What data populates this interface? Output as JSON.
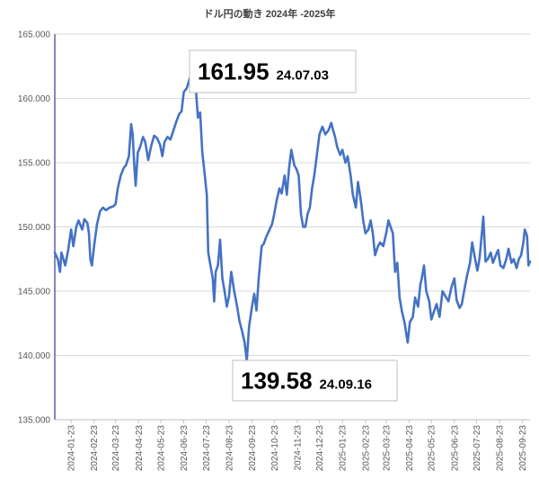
{
  "chart_data": {
    "type": "line",
    "title": "ドル円の動き 2024年 -2025年",
    "xlabel": "",
    "ylabel": "",
    "ylim": [
      135,
      165
    ],
    "yticks": [
      "135.000",
      "140.000",
      "145.000",
      "150.000",
      "155.000",
      "160.000",
      "165.000"
    ],
    "ytick_values": [
      135,
      140,
      145,
      150,
      155,
      160,
      165
    ],
    "xticks": [
      "2024-01-23",
      "2024-02-23",
      "2024-03-23",
      "2024-04-23",
      "2024-05-23",
      "2024-06-23",
      "2024-07-23",
      "2024-08-23",
      "2024-09-23",
      "2024-10-23",
      "2024-11-23",
      "2024-12-23",
      "2025-01-23",
      "2025-02-23",
      "2025-03-23",
      "2025-04-23",
      "2025-05-23",
      "2025-06-23",
      "2025-07-23",
      "2025-08-23",
      "2025-09-23"
    ],
    "xlim": [
      "2024-01-01",
      "2025-10-03"
    ],
    "grid": true,
    "series": [
      {
        "color": "#4472c4",
        "points": [
          [
            "2024-01-01",
            148.0
          ],
          [
            "2024-01-05",
            147.5
          ],
          [
            "2024-01-08",
            146.5
          ],
          [
            "2024-01-10",
            148.0
          ],
          [
            "2024-01-15",
            147.0
          ],
          [
            "2024-01-19",
            148.2
          ],
          [
            "2024-01-23",
            149.8
          ],
          [
            "2024-01-26",
            148.5
          ],
          [
            "2024-01-30",
            150.0
          ],
          [
            "2024-02-02",
            150.5
          ],
          [
            "2024-02-07",
            149.8
          ],
          [
            "2024-02-10",
            150.6
          ],
          [
            "2024-02-14",
            150.3
          ],
          [
            "2024-02-16",
            149.5
          ],
          [
            "2024-02-18",
            147.5
          ],
          [
            "2024-02-20",
            147.0
          ],
          [
            "2024-02-23",
            148.5
          ],
          [
            "2024-02-27",
            150.2
          ],
          [
            "2024-03-02",
            151.2
          ],
          [
            "2024-03-06",
            151.5
          ],
          [
            "2024-03-10",
            151.3
          ],
          [
            "2024-03-15",
            151.5
          ],
          [
            "2024-03-20",
            151.6
          ],
          [
            "2024-03-23",
            151.8
          ],
          [
            "2024-03-26",
            153.0
          ],
          [
            "2024-03-30",
            154.0
          ],
          [
            "2024-04-03",
            154.6
          ],
          [
            "2024-04-06",
            154.8
          ],
          [
            "2024-04-10",
            155.5
          ],
          [
            "2024-04-13",
            158.0
          ],
          [
            "2024-04-15",
            157.2
          ],
          [
            "2024-04-17",
            155.0
          ],
          [
            "2024-04-19",
            153.2
          ],
          [
            "2024-04-22",
            155.8
          ],
          [
            "2024-04-25",
            156.2
          ],
          [
            "2024-04-29",
            157.0
          ],
          [
            "2024-05-02",
            156.6
          ],
          [
            "2024-05-06",
            155.2
          ],
          [
            "2024-05-10",
            156.3
          ],
          [
            "2024-05-14",
            157.1
          ],
          [
            "2024-05-18",
            156.9
          ],
          [
            "2024-05-22",
            156.4
          ],
          [
            "2024-05-25",
            155.5
          ],
          [
            "2024-05-28",
            156.6
          ],
          [
            "2024-06-01",
            157.0
          ],
          [
            "2024-06-05",
            156.8
          ],
          [
            "2024-06-09",
            157.5
          ],
          [
            "2024-06-13",
            158.2
          ],
          [
            "2024-06-17",
            158.8
          ],
          [
            "2024-06-20",
            159.0
          ],
          [
            "2024-06-23",
            160.5
          ],
          [
            "2024-06-27",
            160.8
          ],
          [
            "2024-07-03",
            161.95
          ],
          [
            "2024-07-06",
            161.3
          ],
          [
            "2024-07-09",
            161.0
          ],
          [
            "2024-07-12",
            158.5
          ],
          [
            "2024-07-15",
            158.9
          ],
          [
            "2024-07-18",
            155.8
          ],
          [
            "2024-07-21",
            154.2
          ],
          [
            "2024-07-24",
            152.5
          ],
          [
            "2024-07-26",
            148.0
          ],
          [
            "2024-07-29",
            147.0
          ],
          [
            "2024-08-01",
            146.0
          ],
          [
            "2024-08-03",
            144.2
          ],
          [
            "2024-08-05",
            146.5
          ],
          [
            "2024-08-08",
            147.0
          ],
          [
            "2024-08-11",
            149.0
          ],
          [
            "2024-08-14",
            146.0
          ],
          [
            "2024-08-17",
            145.0
          ],
          [
            "2024-08-20",
            143.8
          ],
          [
            "2024-08-23",
            144.6
          ],
          [
            "2024-08-26",
            146.5
          ],
          [
            "2024-08-30",
            145.0
          ],
          [
            "2024-09-03",
            143.8
          ],
          [
            "2024-09-06",
            142.7
          ],
          [
            "2024-09-10",
            141.8
          ],
          [
            "2024-09-13",
            141.0
          ],
          [
            "2024-09-16",
            139.58
          ],
          [
            "2024-09-19",
            142.2
          ],
          [
            "2024-09-23",
            143.8
          ],
          [
            "2024-09-26",
            144.8
          ],
          [
            "2024-09-29",
            143.5
          ],
          [
            "2024-10-02",
            146.0
          ],
          [
            "2024-10-06",
            148.5
          ],
          [
            "2024-10-09",
            148.7
          ],
          [
            "2024-10-12",
            149.2
          ],
          [
            "2024-10-16",
            149.7
          ],
          [
            "2024-10-20",
            150.2
          ],
          [
            "2024-10-23",
            151.0
          ],
          [
            "2024-10-26",
            152.0
          ],
          [
            "2024-10-30",
            153.0
          ],
          [
            "2024-11-02",
            152.6
          ],
          [
            "2024-11-06",
            154.0
          ],
          [
            "2024-11-09",
            152.5
          ],
          [
            "2024-11-12",
            154.6
          ],
          [
            "2024-11-15",
            156.0
          ],
          [
            "2024-11-19",
            154.8
          ],
          [
            "2024-11-22",
            154.5
          ],
          [
            "2024-11-25",
            154.0
          ],
          [
            "2024-11-28",
            151.0
          ],
          [
            "2024-12-01",
            150.0
          ],
          [
            "2024-12-04",
            150.0
          ],
          [
            "2024-12-07",
            151.0
          ],
          [
            "2024-12-10",
            151.5
          ],
          [
            "2024-12-13",
            153.0
          ],
          [
            "2024-12-16",
            154.0
          ],
          [
            "2024-12-20",
            155.8
          ],
          [
            "2024-12-23",
            157.2
          ],
          [
            "2024-12-27",
            157.8
          ],
          [
            "2024-12-31",
            157.2
          ],
          [
            "2025-01-04",
            157.5
          ],
          [
            "2025-01-08",
            158.1
          ],
          [
            "2025-01-10",
            157.6
          ],
          [
            "2025-01-13",
            157.0
          ],
          [
            "2025-01-16",
            156.2
          ],
          [
            "2025-01-20",
            155.6
          ],
          [
            "2025-01-23",
            156.0
          ],
          [
            "2025-01-27",
            155.0
          ],
          [
            "2025-01-30",
            155.5
          ],
          [
            "2025-02-03",
            154.0
          ],
          [
            "2025-02-06",
            152.5
          ],
          [
            "2025-02-10",
            151.5
          ],
          [
            "2025-02-13",
            153.5
          ],
          [
            "2025-02-17",
            152.0
          ],
          [
            "2025-02-20",
            150.5
          ],
          [
            "2025-02-23",
            149.5
          ],
          [
            "2025-02-27",
            149.8
          ],
          [
            "2025-03-02",
            150.5
          ],
          [
            "2025-03-05",
            149.5
          ],
          [
            "2025-03-08",
            147.8
          ],
          [
            "2025-03-12",
            148.5
          ],
          [
            "2025-03-15",
            148.8
          ],
          [
            "2025-03-19",
            148.5
          ],
          [
            "2025-03-23",
            149.5
          ],
          [
            "2025-03-26",
            150.5
          ],
          [
            "2025-03-29",
            150.0
          ],
          [
            "2025-04-01",
            149.5
          ],
          [
            "2025-04-04",
            146.5
          ],
          [
            "2025-04-07",
            147.2
          ],
          [
            "2025-04-10",
            144.5
          ],
          [
            "2025-04-13",
            143.5
          ],
          [
            "2025-04-17",
            142.5
          ],
          [
            "2025-04-21",
            141.0
          ],
          [
            "2025-04-24",
            142.6
          ],
          [
            "2025-04-28",
            143.0
          ],
          [
            "2025-05-01",
            144.5
          ],
          [
            "2025-05-05",
            143.8
          ],
          [
            "2025-05-08",
            145.5
          ],
          [
            "2025-05-10",
            146.0
          ],
          [
            "2025-05-13",
            147.0
          ],
          [
            "2025-05-16",
            145.0
          ],
          [
            "2025-05-20",
            144.2
          ],
          [
            "2025-05-23",
            142.8
          ],
          [
            "2025-05-27",
            143.5
          ],
          [
            "2025-05-30",
            144.0
          ],
          [
            "2025-06-03",
            143.0
          ],
          [
            "2025-06-07",
            145.0
          ],
          [
            "2025-06-11",
            144.6
          ],
          [
            "2025-06-15",
            144.2
          ],
          [
            "2025-06-19",
            145.3
          ],
          [
            "2025-06-23",
            146.0
          ],
          [
            "2025-06-26",
            144.3
          ],
          [
            "2025-06-30",
            143.7
          ],
          [
            "2025-07-03",
            144.0
          ],
          [
            "2025-07-07",
            145.3
          ],
          [
            "2025-07-10",
            146.2
          ],
          [
            "2025-07-14",
            147.2
          ],
          [
            "2025-07-17",
            148.8
          ],
          [
            "2025-07-21",
            147.5
          ],
          [
            "2025-07-24",
            146.6
          ],
          [
            "2025-07-27",
            147.6
          ],
          [
            "2025-07-30",
            149.5
          ],
          [
            "2025-08-01",
            150.8
          ],
          [
            "2025-08-04",
            147.3
          ],
          [
            "2025-08-07",
            147.5
          ],
          [
            "2025-08-11",
            148.0
          ],
          [
            "2025-08-14",
            147.2
          ],
          [
            "2025-08-18",
            147.8
          ],
          [
            "2025-08-21",
            148.2
          ],
          [
            "2025-08-24",
            147.0
          ],
          [
            "2025-08-28",
            146.8
          ],
          [
            "2025-09-01",
            147.5
          ],
          [
            "2025-09-04",
            148.3
          ],
          [
            "2025-09-08",
            147.2
          ],
          [
            "2025-09-11",
            147.5
          ],
          [
            "2025-09-15",
            146.8
          ],
          [
            "2025-09-18",
            147.5
          ],
          [
            "2025-09-21",
            147.8
          ],
          [
            "2025-09-24",
            148.8
          ],
          [
            "2025-09-26",
            149.8
          ],
          [
            "2025-09-29",
            149.3
          ],
          [
            "2025-10-01",
            147.0
          ],
          [
            "2025-10-03",
            147.3
          ]
        ]
      }
    ],
    "annotations": [
      {
        "value": "161.95",
        "date": "24.07.03",
        "anchor_x": "2024-07-03",
        "anchor_y": 161.95
      },
      {
        "value": "139.58",
        "date": "24.09.16",
        "anchor_x": "2024-09-16",
        "anchor_y": 139.58
      }
    ]
  }
}
